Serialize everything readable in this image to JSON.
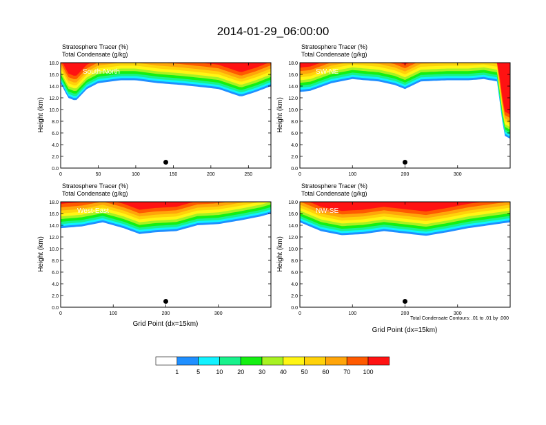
{
  "title": "2014-01-29_06:00:00",
  "panel_header": {
    "line1": "Stratosphere Tracer   (%)",
    "line2": "Total Condensate   (g/kg)"
  },
  "y_axis_label": "Height (km)",
  "x_axis_label": "Grid Point (dx=15km)",
  "contour_note": "Total Condensate Contours: .01 to .01 by .000",
  "colorbar": {
    "levels": [
      "1",
      "5",
      "10",
      "20",
      "30",
      "40",
      "50",
      "60",
      "70",
      "100"
    ],
    "colors": [
      "#ffffff",
      "#1f8fff",
      "#12f2ff",
      "#18f28c",
      "#14f012",
      "#a8f222",
      "#fff514",
      "#ffd20a",
      "#ffa50a",
      "#ff5a00",
      "#ff1212"
    ]
  },
  "chart_data": [
    {
      "type": "heatmap",
      "panel": "top-left",
      "label": "South-North",
      "xlim": [
        0,
        280
      ],
      "ylim": [
        0,
        18
      ],
      "x_ticks": [
        0,
        50,
        100,
        150,
        200,
        250
      ],
      "y_ticks": [
        0.0,
        2.0,
        4.0,
        6.0,
        8.0,
        10.0,
        12.0,
        14.0,
        16.0,
        18.0
      ],
      "x_tick_labels": [
        "0",
        "50",
        "100",
        "150",
        "200",
        "250"
      ],
      "y_tick_labels": [
        "0.0",
        "2.0",
        "4.0",
        "6.0",
        "8.0",
        "10.0",
        "12.0",
        "14.0",
        "16.0",
        "18.0"
      ],
      "tracer_base_km": [
        [
          0,
          14.5
        ],
        [
          10,
          12.0
        ],
        [
          20,
          11.5
        ],
        [
          35,
          13.5
        ],
        [
          50,
          14.5
        ],
        [
          80,
          15.0
        ],
        [
          100,
          15.0
        ],
        [
          130,
          14.5
        ],
        [
          160,
          14.2
        ],
        [
          190,
          13.8
        ],
        [
          210,
          13.5
        ],
        [
          240,
          12.2
        ],
        [
          260,
          13.0
        ],
        [
          280,
          14.0
        ]
      ],
      "marker": {
        "x": 140,
        "y": 1.0
      }
    },
    {
      "type": "heatmap",
      "panel": "top-right",
      "label": "SW-NE",
      "xlim": [
        0,
        400
      ],
      "ylim": [
        0,
        18
      ],
      "x_ticks": [
        0,
        100,
        200,
        300
      ],
      "y_ticks": [
        0.0,
        2.0,
        4.0,
        6.0,
        8.0,
        10.0,
        12.0,
        14.0,
        16.0,
        18.0
      ],
      "x_tick_labels": [
        "0",
        "100",
        "200",
        "300"
      ],
      "y_tick_labels": [
        "0.0",
        "2.0",
        "4.0",
        "6.0",
        "8.0",
        "10.0",
        "12.0",
        "14.0",
        "16.0",
        "18.0"
      ],
      "tracer_base_km": [
        [
          0,
          13.0
        ],
        [
          20,
          13.2
        ],
        [
          60,
          14.5
        ],
        [
          100,
          15.2
        ],
        [
          150,
          14.8
        ],
        [
          180,
          14.2
        ],
        [
          200,
          13.5
        ],
        [
          230,
          14.8
        ],
        [
          280,
          15.0
        ],
        [
          320,
          15.0
        ],
        [
          350,
          15.2
        ],
        [
          375,
          14.8
        ],
        [
          385,
          8.0
        ],
        [
          390,
          5.5
        ],
        [
          400,
          5.0
        ]
      ],
      "marker": {
        "x": 200,
        "y": 1.0
      }
    },
    {
      "type": "heatmap",
      "panel": "bottom-left",
      "label": "West-East",
      "xlim": [
        0,
        400
      ],
      "ylim": [
        0,
        18
      ],
      "x_ticks": [
        0,
        100,
        200,
        300
      ],
      "y_ticks": [
        0.0,
        2.0,
        4.0,
        6.0,
        8.0,
        10.0,
        12.0,
        14.0,
        16.0,
        18.0
      ],
      "x_tick_labels": [
        "0",
        "100",
        "200",
        "300"
      ],
      "y_tick_labels": [
        "0.0",
        "2.0",
        "4.0",
        "6.0",
        "8.0",
        "10.0",
        "12.0",
        "14.0",
        "16.0",
        "18.0"
      ],
      "tracer_base_km": [
        [
          0,
          13.5
        ],
        [
          40,
          13.8
        ],
        [
          80,
          14.5
        ],
        [
          120,
          13.5
        ],
        [
          150,
          12.5
        ],
        [
          180,
          12.8
        ],
        [
          220,
          13.0
        ],
        [
          260,
          14.0
        ],
        [
          300,
          14.2
        ],
        [
          340,
          14.8
        ],
        [
          380,
          15.5
        ],
        [
          400,
          16.0
        ]
      ],
      "marker": {
        "x": 200,
        "y": 1.0
      }
    },
    {
      "type": "heatmap",
      "panel": "bottom-right",
      "label": "NW-SE",
      "xlim": [
        0,
        400
      ],
      "ylim": [
        0,
        18
      ],
      "x_ticks": [
        0,
        100,
        200,
        300
      ],
      "y_ticks": [
        0.0,
        2.0,
        4.0,
        6.0,
        8.0,
        10.0,
        12.0,
        14.0,
        16.0,
        18.0
      ],
      "x_tick_labels": [
        "0",
        "100",
        "200",
        "300"
      ],
      "y_tick_labels": [
        "0.0",
        "2.0",
        "4.0",
        "6.0",
        "8.0",
        "10.0",
        "12.0",
        "14.0",
        "16.0",
        "18.0"
      ],
      "tracer_base_km": [
        [
          0,
          14.5
        ],
        [
          40,
          13.0
        ],
        [
          80,
          12.3
        ],
        [
          120,
          12.5
        ],
        [
          160,
          13.0
        ],
        [
          200,
          12.6
        ],
        [
          240,
          12.2
        ],
        [
          280,
          12.8
        ],
        [
          320,
          13.5
        ],
        [
          360,
          14.0
        ],
        [
          400,
          14.5
        ]
      ],
      "marker": {
        "x": 200,
        "y": 1.0
      }
    }
  ]
}
